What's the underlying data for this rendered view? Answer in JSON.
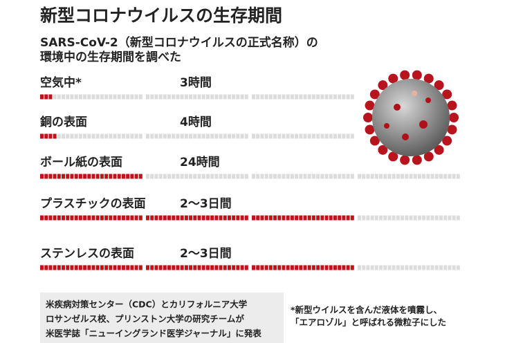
{
  "chart_data": {
    "type": "segmented-bar",
    "title": "新型コロナウイルスの生存期間",
    "subtitle": [
      "SARS-CoV-2（新型コロナウイルスの正式名称）の",
      "環境中の生存期間を調べた"
    ],
    "categories": [
      "空気中*",
      "銅の表面",
      "ボール紙の表面",
      "プラスチックの表面",
      "ステンレスの表面"
    ],
    "values": [
      3,
      4,
      24,
      72,
      72
    ],
    "value_labels": [
      "3時間",
      "4時間",
      "24時間",
      "2〜3日間",
      "2〜3日間"
    ],
    "xlim": [
      0,
      96
    ],
    "color": "#c1121c",
    "source": [
      "米疾病対策センター（CDC）とカリフォルニア大学",
      "ロサンゼルス校、プリンストン大学の研究チームが",
      "米医学誌「ニューイングランド医学ジャーナル」に発表"
    ],
    "note": [
      "*新型ウイルスを含んだ液体を噴霧し、",
      "「エアロゾル」と呼ばれる微粒子にした"
    ]
  }
}
